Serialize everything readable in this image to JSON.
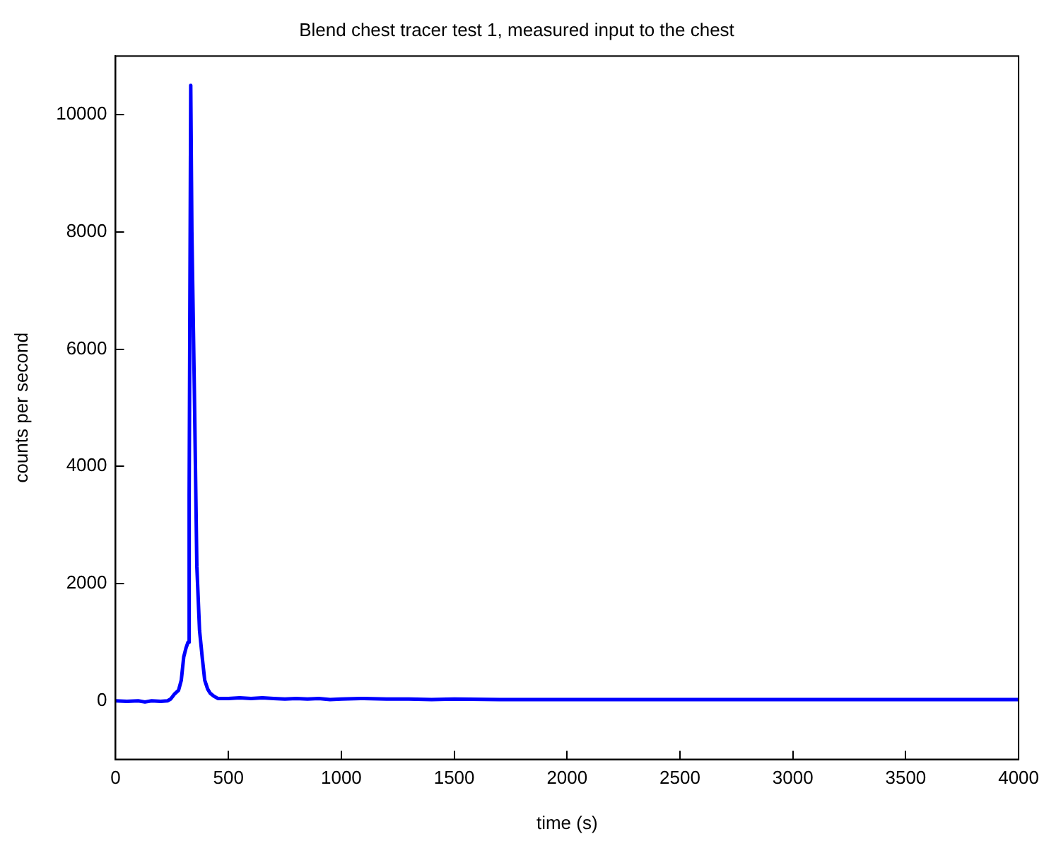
{
  "chart_data": {
    "type": "line",
    "title": "Blend chest tracer test 1, measured input to the chest",
    "xlabel": "time (s)",
    "ylabel": "counts per second",
    "x": [
      0,
      50,
      100,
      130,
      160,
      200,
      230,
      244,
      262,
      279,
      291,
      302,
      312,
      321,
      326,
      333,
      338,
      349,
      360,
      372,
      385,
      395,
      408,
      419,
      435,
      453,
      500,
      550,
      600,
      650,
      700,
      750,
      800,
      850,
      900,
      950,
      1000,
      1100,
      1200,
      1300,
      1400,
      1500,
      1700,
      2000,
      2200,
      2500,
      3000,
      3500,
      3900,
      4000
    ],
    "series": [
      {
        "color": "#0000ff",
        "values": [
          0,
          -10,
          0,
          -20,
          0,
          -10,
          0,
          30,
          120,
          180,
          350,
          750,
          900,
          1000,
          3500,
          10500,
          8000,
          5300,
          2300,
          1200,
          700,
          350,
          200,
          130,
          80,
          40,
          40,
          50,
          40,
          50,
          40,
          30,
          40,
          30,
          40,
          20,
          30,
          40,
          30,
          30,
          20,
          30,
          20,
          20,
          20,
          20,
          20,
          20,
          20,
          20
        ]
      }
    ],
    "xlim": [
      0,
      4000
    ],
    "xticks": [
      0,
      500,
      1000,
      1500,
      2000,
      2500,
      3000,
      3500,
      4000
    ],
    "ylim": [
      -1000,
      11000
    ],
    "yticks": [
      0,
      2000,
      4000,
      6000,
      8000,
      10000
    ],
    "grid": false,
    "legend": false,
    "line_style": "solid",
    "marker": "none"
  }
}
